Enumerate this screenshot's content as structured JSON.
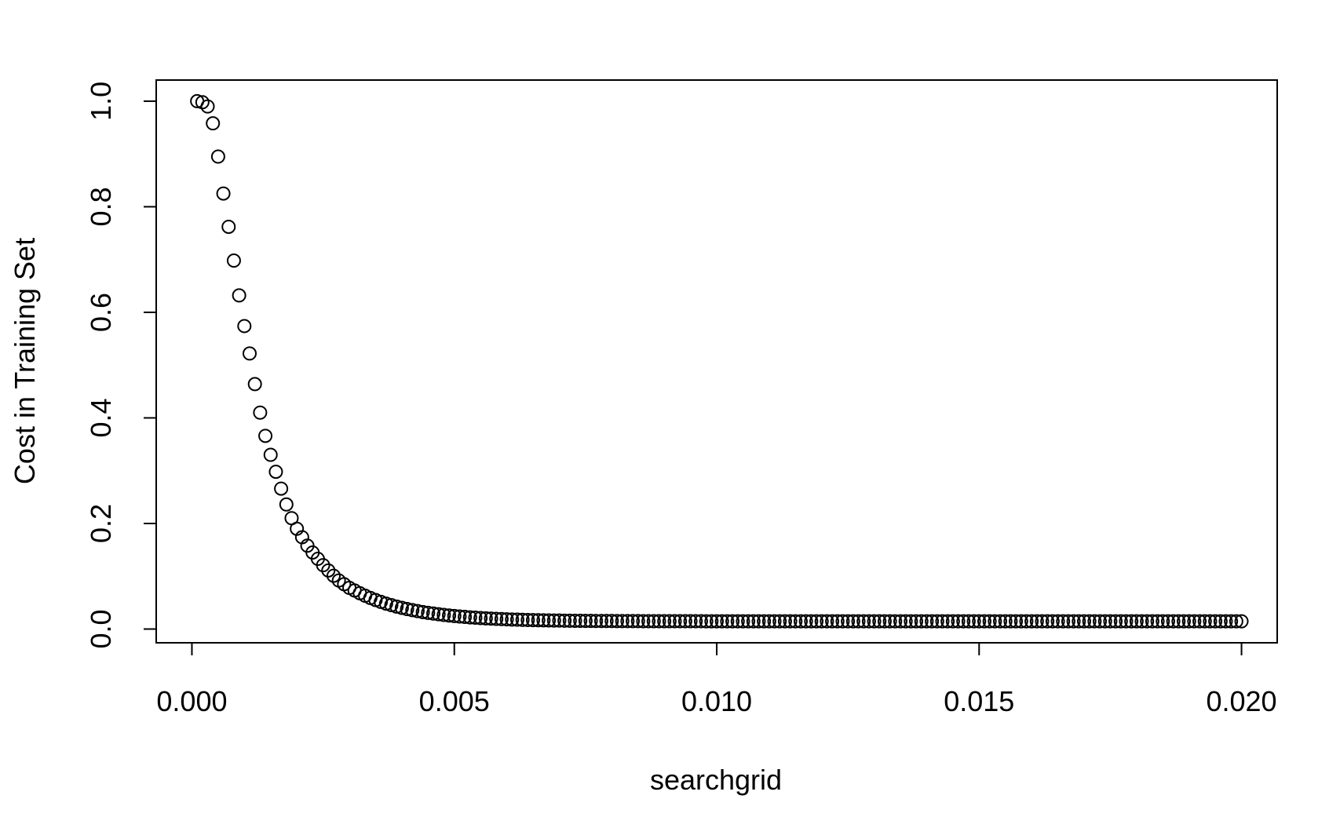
{
  "chart_data": {
    "type": "scatter",
    "title": "",
    "xlabel": "searchgrid",
    "ylabel": "Cost in Training Set",
    "xlim": [
      -0.00068,
      0.02068
    ],
    "ylim": [
      -0.026,
      1.04
    ],
    "x_ticks": [
      {
        "value": 0.0,
        "label": "0.000"
      },
      {
        "value": 0.005,
        "label": "0.005"
      },
      {
        "value": 0.01,
        "label": "0.010"
      },
      {
        "value": 0.015,
        "label": "0.015"
      },
      {
        "value": 0.02,
        "label": "0.020"
      }
    ],
    "y_ticks": [
      {
        "value": 0.0,
        "label": "0.0"
      },
      {
        "value": 0.2,
        "label": "0.2"
      },
      {
        "value": 0.4,
        "label": "0.4"
      },
      {
        "value": 0.6,
        "label": "0.6"
      },
      {
        "value": 0.8,
        "label": "0.8"
      },
      {
        "value": 1.0,
        "label": "1.0"
      }
    ],
    "grid": false,
    "legend": "none",
    "marker": "open-circle",
    "series": [
      {
        "x_start": 0.0001,
        "x_step": 0.0001,
        "y": [
          1.0,
          0.998,
          0.99,
          0.958,
          0.895,
          0.825,
          0.762,
          0.698,
          0.632,
          0.574,
          0.522,
          0.464,
          0.41,
          0.366,
          0.33,
          0.298,
          0.266,
          0.236,
          0.21,
          0.19,
          0.174,
          0.158,
          0.145,
          0.133,
          0.121,
          0.111,
          0.101,
          0.092,
          0.085,
          0.078,
          0.0731,
          0.0679,
          0.0632,
          0.0589,
          0.055,
          0.0515,
          0.0482,
          0.0453,
          0.0426,
          0.0401,
          0.0379,
          0.0358,
          0.034,
          0.0322,
          0.0307,
          0.0293,
          0.028,
          0.0268,
          0.0257,
          0.0247,
          0.0238,
          0.023,
          0.0222,
          0.0215,
          0.0209,
          0.0203,
          0.0198,
          0.0193,
          0.0189,
          0.0185,
          0.0181,
          0.0178,
          0.0175,
          0.0172,
          0.017,
          0.0168,
          0.0166,
          0.0164,
          0.0162,
          0.0161,
          0.0159,
          0.0158,
          0.0157,
          0.0156,
          0.0155,
          0.0154,
          0.0153,
          0.0153,
          0.0152,
          0.0152,
          0.0151,
          0.0151,
          0.015,
          0.015,
          0.015,
          0.0149,
          0.0149,
          0.0149,
          0.0149,
          0.0148,
          0.0148,
          0.0148,
          0.0148,
          0.0148,
          0.0148,
          0.0148,
          0.0148,
          0.0147,
          0.0147,
          0.0147,
          0.0147,
          0.0147,
          0.0147,
          0.0147,
          0.0147,
          0.0147,
          0.0147,
          0.0147,
          0.0147,
          0.0147,
          0.0147,
          0.0147,
          0.0147,
          0.0147,
          0.0147,
          0.0147,
          0.0147,
          0.0147,
          0.0147,
          0.0147,
          0.0147,
          0.0147,
          0.0147,
          0.0147,
          0.0147,
          0.0147,
          0.0147,
          0.0147,
          0.0147,
          0.0147,
          0.0147,
          0.0147,
          0.0147,
          0.0147,
          0.0147,
          0.0147,
          0.0147,
          0.0147,
          0.0147,
          0.0147,
          0.0147,
          0.0147,
          0.0147,
          0.0147,
          0.0147,
          0.0147,
          0.0147,
          0.0147,
          0.0147,
          0.0147,
          0.0147,
          0.0147,
          0.0147,
          0.0147,
          0.0147,
          0.0147,
          0.0147,
          0.0147,
          0.0147,
          0.0147,
          0.0147,
          0.0147,
          0.0147,
          0.0147,
          0.0147,
          0.0147,
          0.0147,
          0.0147,
          0.0147,
          0.0147,
          0.0147,
          0.0147,
          0.0147,
          0.0147,
          0.0147,
          0.0147,
          0.0147,
          0.0147,
          0.0147,
          0.0147,
          0.0147,
          0.0147,
          0.0147,
          0.0147,
          0.0147,
          0.0147,
          0.0147,
          0.0147,
          0.0147,
          0.0147,
          0.0147,
          0.0147,
          0.0147,
          0.0147,
          0.0147,
          0.0147,
          0.0147,
          0.0147,
          0.0147,
          0.0147
        ]
      }
    ]
  }
}
